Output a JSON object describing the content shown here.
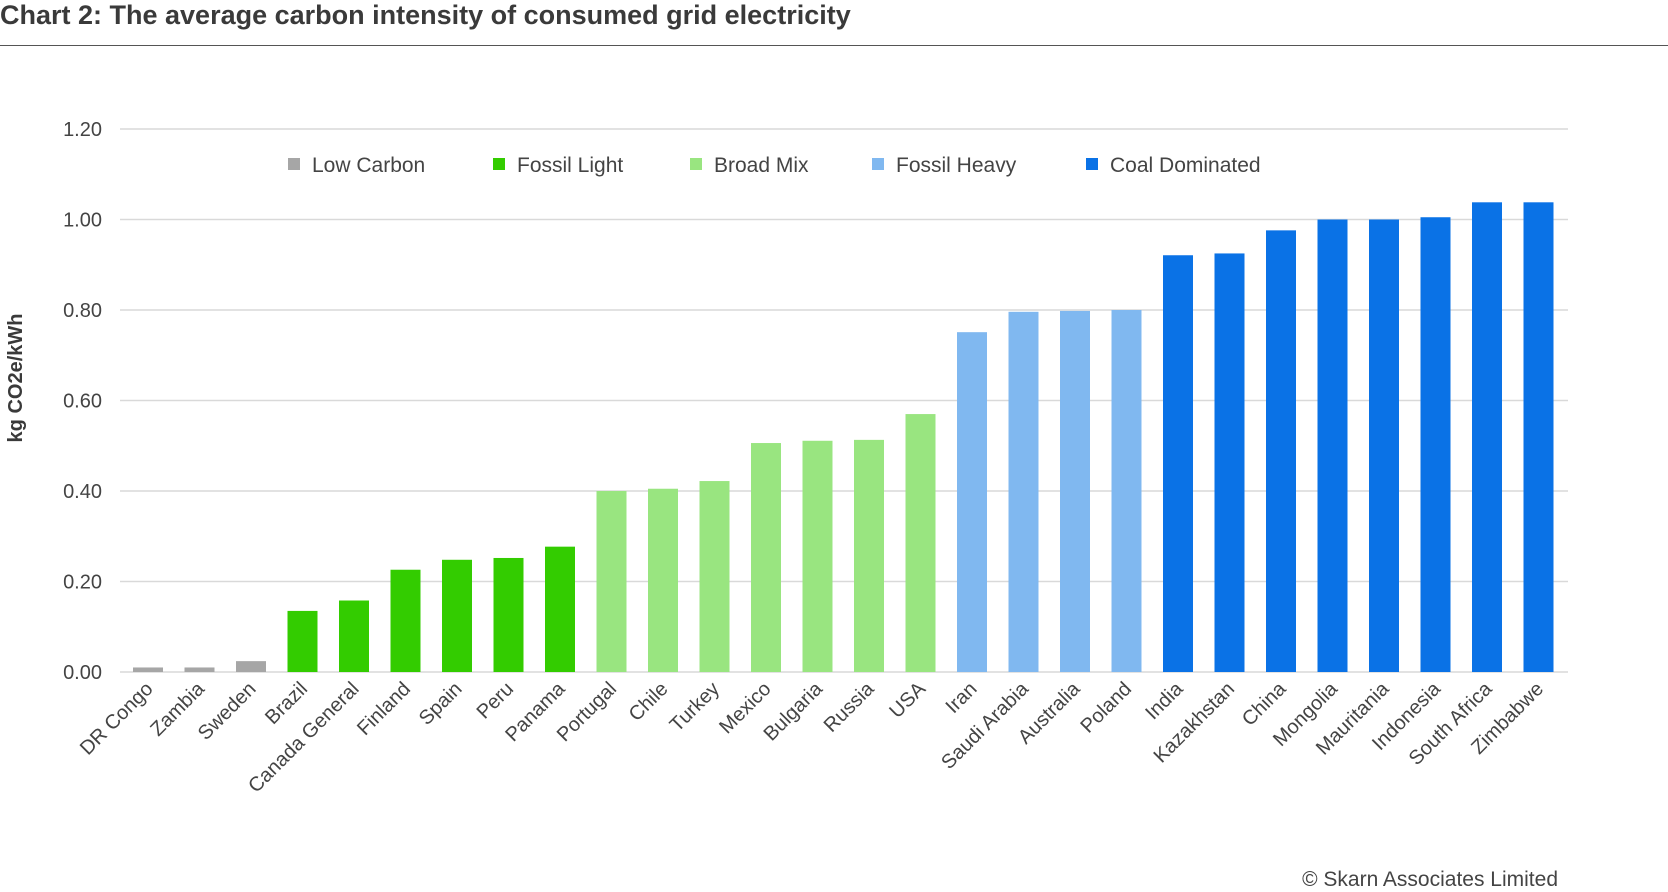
{
  "chart_data": {
    "type": "bar",
    "title": "Chart 2: The average carbon intensity of consumed grid electricity",
    "ylabel": "kg CO2e/kWh",
    "xlabel": "",
    "ylim": [
      0,
      1.2
    ],
    "yticks": [
      "0.00",
      "0.20",
      "0.40",
      "0.60",
      "0.80",
      "1.00",
      "1.20"
    ],
    "grid": true,
    "legend_position": "top",
    "categories": [
      "DR Congo",
      "Zambia",
      "Sweden",
      "Brazil",
      "Canada General",
      "Finland",
      "Spain",
      "Peru",
      "Panama",
      "Portugal",
      "Chile",
      "Turkey",
      "Mexico",
      "Bulgaria",
      "Russia",
      "USA",
      "Iran",
      "Saudi Arabia",
      "Australia",
      "Poland",
      "India",
      "Kazakhstan",
      "China",
      "Mongolia",
      "Mauritania",
      "Indonesia",
      "South Africa",
      "Zimbabwe"
    ],
    "values": [
      0.01,
      0.01,
      0.024,
      0.135,
      0.158,
      0.226,
      0.248,
      0.252,
      0.277,
      0.4,
      0.405,
      0.422,
      0.506,
      0.511,
      0.513,
      0.57,
      0.751,
      0.796,
      0.798,
      0.8,
      0.921,
      0.925,
      0.976,
      1.0,
      1.0,
      1.005,
      1.038,
      1.038
    ],
    "groups": [
      "Low Carbon",
      "Low Carbon",
      "Low Carbon",
      "Fossil Light",
      "Fossil Light",
      "Fossil Light",
      "Fossil Light",
      "Fossil Light",
      "Fossil Light",
      "Broad Mix",
      "Broad Mix",
      "Broad Mix",
      "Broad Mix",
      "Broad Mix",
      "Broad Mix",
      "Broad Mix",
      "Fossil Heavy",
      "Fossil Heavy",
      "Fossil Heavy",
      "Fossil Heavy",
      "Coal Dominated",
      "Coal Dominated",
      "Coal Dominated",
      "Coal Dominated",
      "Coal Dominated",
      "Coal Dominated",
      "Coal Dominated",
      "Coal Dominated"
    ],
    "legend": [
      {
        "name": "Low Carbon",
        "color": "#a6a6a6"
      },
      {
        "name": "Fossil Light",
        "color": "#33cc00"
      },
      {
        "name": "Broad Mix",
        "color": "#99e580"
      },
      {
        "name": "Fossil Heavy",
        "color": "#80b8f0"
      },
      {
        "name": "Coal Dominated",
        "color": "#0a72e6"
      }
    ],
    "gridline_color": "#d9d9d9"
  },
  "credit": "© Skarn Associates Limited"
}
